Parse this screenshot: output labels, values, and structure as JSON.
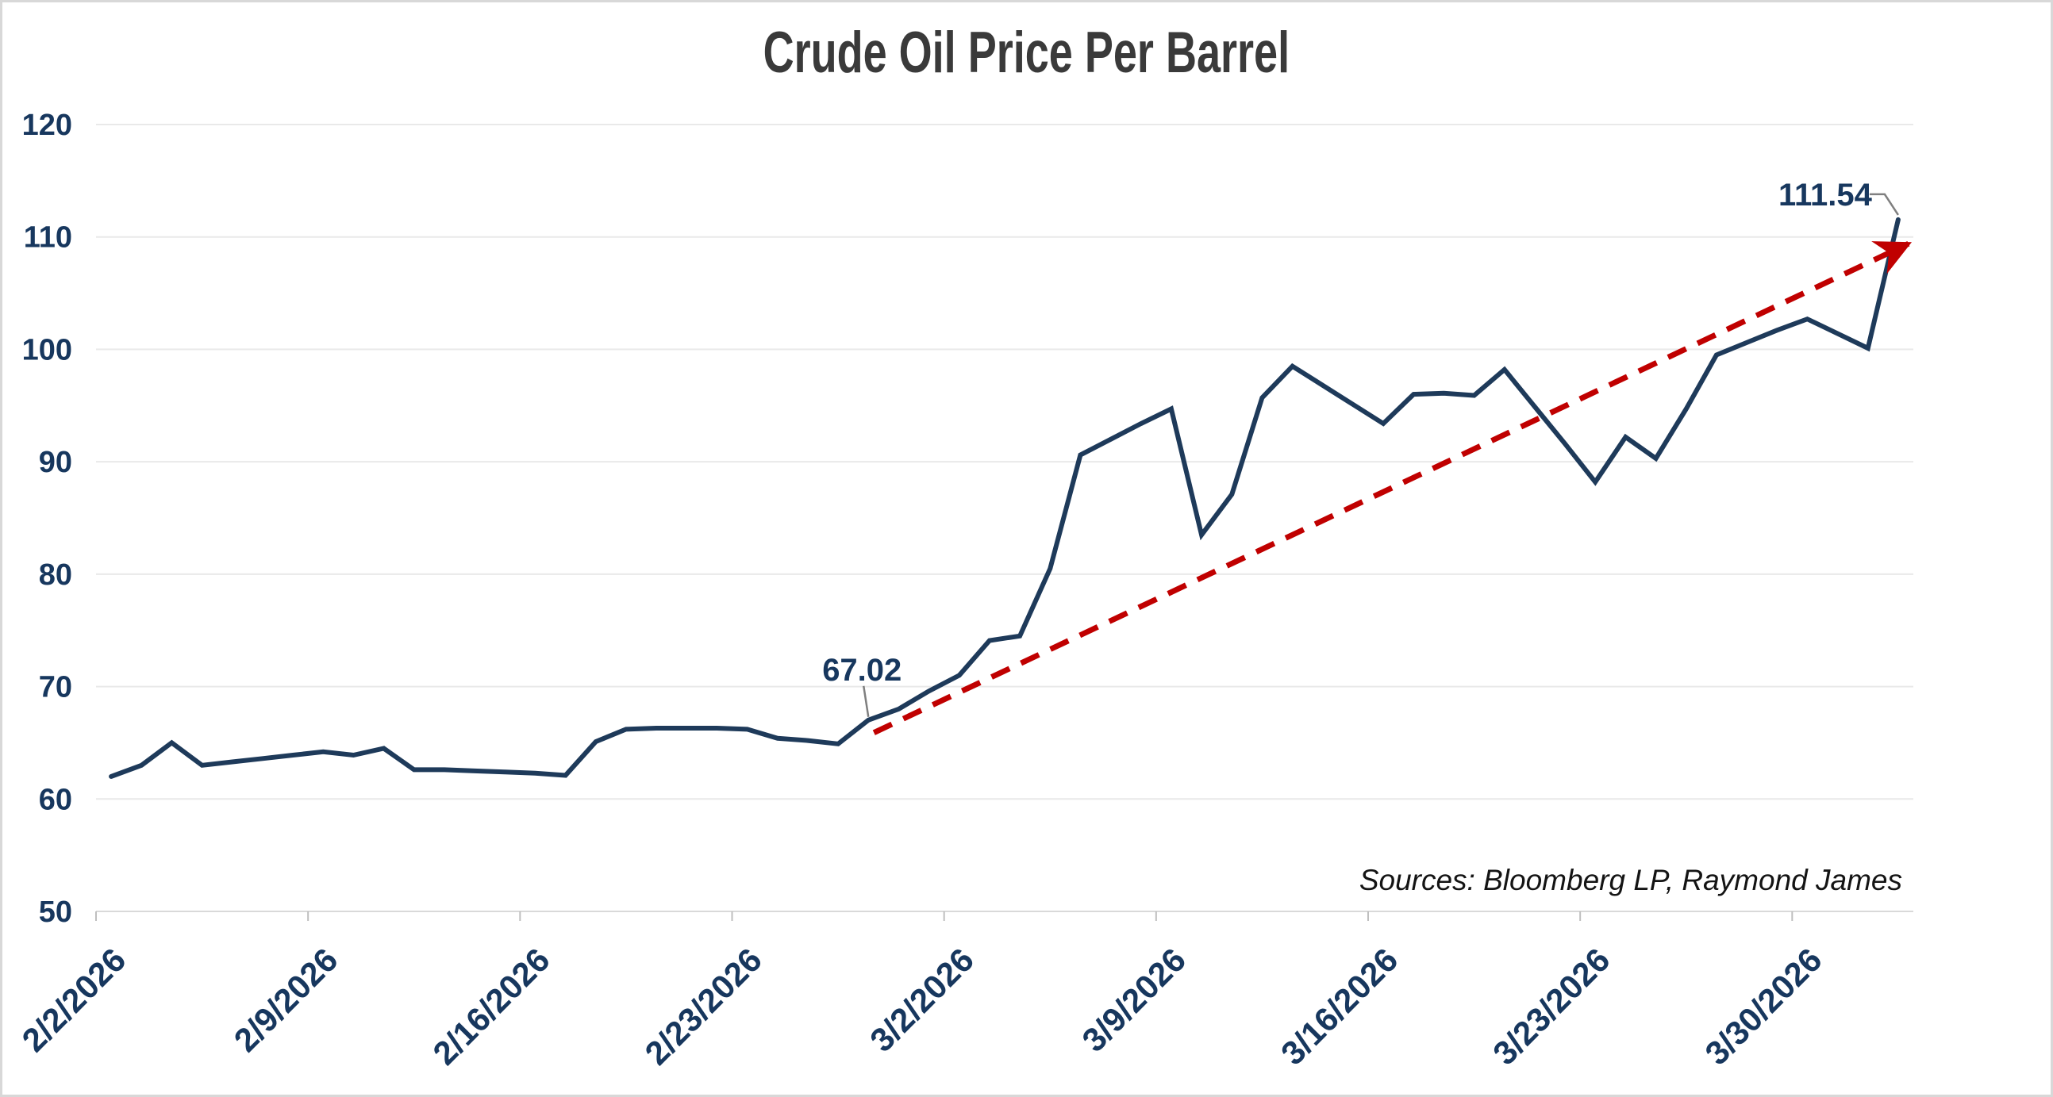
{
  "title": "Crude Oil Price Per Barrel",
  "source_note": "Sources: Bloomberg LP, Raymond James",
  "colors": {
    "line": "#1e3a5a",
    "axis_label": "#17375e",
    "trend": "#c00000",
    "gridline": "#e9e9e9",
    "axis_line": "#d9d9d9",
    "tick": "#bfbfbf",
    "leader": "#7f7f7f",
    "title_text": "#3a3a3a",
    "annotation_text": "#17375e"
  },
  "chart_data": {
    "type": "line",
    "title": "Crude Oil Price Per Barrel",
    "xlabel": "",
    "ylabel": "",
    "ylim": [
      50,
      120
    ],
    "y_ticks": [
      50,
      60,
      70,
      80,
      90,
      100,
      110,
      120
    ],
    "grid": "horizontal",
    "legend": "none",
    "x_label_rotation": -45,
    "x_tick_labels": [
      "2/2/2026",
      "2/9/2026",
      "2/16/2026",
      "2/23/2026",
      "3/2/2026",
      "3/9/2026",
      "3/16/2026",
      "3/23/2026",
      "3/30/2026"
    ],
    "x_tick_interval_days": 7,
    "x": [
      "2/2/2026",
      "2/3/2026",
      "2/4/2026",
      "2/5/2026",
      "2/6/2026",
      "2/7/2026",
      "2/8/2026",
      "2/9/2026",
      "2/10/2026",
      "2/11/2026",
      "2/12/2026",
      "2/13/2026",
      "2/14/2026",
      "2/15/2026",
      "2/16/2026",
      "2/17/2026",
      "2/18/2026",
      "2/19/2026",
      "2/20/2026",
      "2/21/2026",
      "2/22/2026",
      "2/23/2026",
      "2/24/2026",
      "2/25/2026",
      "2/26/2026",
      "2/27/2026",
      "2/28/2026",
      "3/1/2026",
      "3/2/2026",
      "3/3/2026",
      "3/4/2026",
      "3/5/2026",
      "3/6/2026",
      "3/7/2026",
      "3/8/2026",
      "3/9/2026",
      "3/10/2026",
      "3/11/2026",
      "3/12/2026",
      "3/13/2026",
      "3/14/2026",
      "3/15/2026",
      "3/16/2026",
      "3/17/2026",
      "3/18/2026",
      "3/19/2026",
      "3/20/2026",
      "3/21/2026",
      "3/22/2026",
      "3/23/2026",
      "3/24/2026",
      "3/25/2026",
      "3/26/2026",
      "3/27/2026",
      "3/28/2026",
      "3/29/2026",
      "3/30/2026",
      "3/31/2026",
      "4/1/2026",
      "4/2/2026"
    ],
    "series": [
      {
        "name": "Crude Oil Price",
        "values": [
          62.0,
          63.0,
          65.0,
          63.0,
          63.3,
          63.6,
          63.9,
          64.2,
          63.9,
          64.5,
          62.6,
          62.6,
          62.5,
          62.4,
          62.3,
          62.1,
          65.1,
          66.2,
          66.3,
          66.3,
          66.3,
          66.2,
          65.4,
          65.2,
          64.9,
          67.02,
          68.0,
          69.6,
          71.0,
          74.1,
          74.5,
          80.5,
          90.6,
          92.0,
          93.4,
          94.7,
          83.5,
          87.1,
          95.7,
          98.5,
          96.8,
          95.1,
          93.4,
          96.0,
          96.1,
          95.9,
          98.2,
          94.9,
          91.6,
          88.2,
          92.2,
          90.3,
          94.7,
          99.5,
          100.6,
          101.7,
          102.7,
          101.4,
          100.1,
          111.54
        ]
      }
    ],
    "trend_line": {
      "style": "dashed-arrow",
      "from": {
        "date": "2/27/2026",
        "value": 65.9
      },
      "to": {
        "date": "4/2/2026",
        "value": 109.4
      }
    },
    "point_annotations": [
      {
        "date": "2/27/2026",
        "value": 67.02,
        "label": "67.02"
      },
      {
        "date": "4/2/2026",
        "value": 111.54,
        "label": "111.54"
      }
    ]
  }
}
